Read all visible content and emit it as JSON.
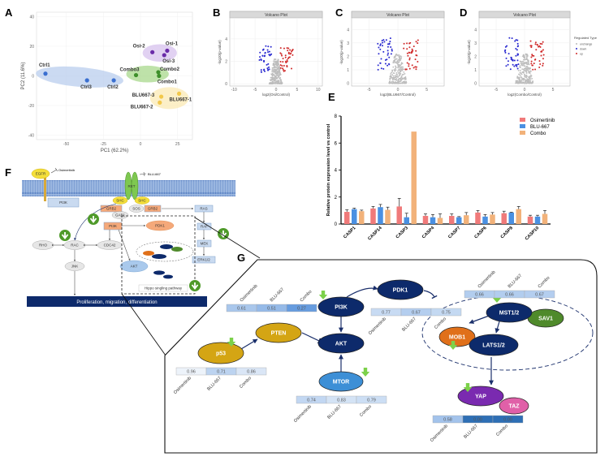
{
  "panel_labels": {
    "A": "A",
    "B": "B",
    "C": "C",
    "D": "D",
    "E": "E",
    "F": "F",
    "G": "G"
  },
  "chart_data": [
    {
      "panel": "A",
      "type": "scatter",
      "xlabel": "PC1 (62.2%)",
      "ylabel": "PC2 (11.6%)",
      "xlim": [
        -70,
        35
      ],
      "ylim": [
        -43,
        43
      ],
      "xticks": [
        "-50",
        "-25",
        "0",
        "25"
      ],
      "xtick_values": [
        -50,
        -25,
        0,
        25
      ],
      "yticks": [
        "40",
        "20",
        "0",
        "-20",
        "-40"
      ],
      "ytick_values": [
        40,
        20,
        0,
        -20,
        -40
      ],
      "groups": [
        {
          "color": "#3a6fd0",
          "ellipse_color": "#b9cdee",
          "points": [
            {
              "label": "Ctrl1",
              "x": -64,
              "y": 1.5
            },
            {
              "label": "Ctrl3",
              "x": -36,
              "y": -3
            },
            {
              "label": "Ctrl2",
              "x": -18,
              "y": -3
            }
          ]
        },
        {
          "color": "#6a2aa8",
          "ellipse_color": "#d7c2ee",
          "points": [
            {
              "label": "Osi-2",
              "x": 8,
              "y": 16
            },
            {
              "label": "Osi-1",
              "x": 18,
              "y": 17
            },
            {
              "label": "Osi-3",
              "x": 16,
              "y": 14
            }
          ]
        },
        {
          "color": "#3d8f2a",
          "ellipse_color": "#a8d88c",
          "points": [
            {
              "label": "Combo3",
              "x": -3,
              "y": 0.5
            },
            {
              "label": "Combo2",
              "x": 12,
              "y": 2.5
            },
            {
              "label": "Combo1",
              "x": 12.5,
              "y": 0
            }
          ]
        },
        {
          "color": "#f2c84b",
          "ellipse_color": "#fbe9b4",
          "points": [
            {
              "label": "BLU667-3",
              "x": 14,
              "y": -14
            },
            {
              "label": "BLU667-1",
              "x": 26,
              "y": -12
            },
            {
              "label": "BLU667-2",
              "x": 13,
              "y": -18
            }
          ]
        }
      ]
    },
    {
      "panel": "B",
      "type": "scatter",
      "title": "Volcano Plot",
      "xlabel": "log2(Osi/Control)",
      "ylabel": "-log10(p-value)",
      "xlim": [
        -11,
        11
      ],
      "ylim": [
        -0.2,
        5.8
      ],
      "xticks": [
        -10,
        -5,
        0,
        5,
        10
      ],
      "yticks": [
        0,
        2,
        4
      ]
    },
    {
      "panel": "C",
      "type": "scatter",
      "title": "Volcano Plot",
      "xlabel": "log2(BLU667/Control)",
      "ylabel": "-log10(p-value)",
      "xlim": [
        -8,
        8
      ],
      "ylim": [
        -0.2,
        4.8
      ],
      "xticks": [
        -5,
        0,
        5
      ],
      "yticks": [
        0,
        1,
        2,
        3,
        4
      ]
    },
    {
      "panel": "D",
      "type": "scatter",
      "title": "Volcano Plot",
      "xlabel": "log2(Combo/Control)",
      "ylabel": "-log10(p-value)",
      "xlim": [
        -8,
        8
      ],
      "ylim": [
        -0.2,
        4.8
      ],
      "xticks": [
        -5,
        0,
        5
      ],
      "yticks": [
        0,
        1,
        2,
        3,
        4
      ],
      "legend": {
        "title": "Regulated Type",
        "entries": [
          "unchange",
          "down",
          "up"
        ],
        "colors": [
          "#bbbbbb",
          "#2a2ad0",
          "#d02a2a"
        ],
        "placement": "right"
      }
    },
    {
      "panel": "E",
      "type": "bar",
      "ylabel": "Relative protein expression level vs control",
      "ylim": [
        0,
        8
      ],
      "yticks": [
        0,
        2,
        4,
        6,
        8
      ],
      "categories": [
        "CASP1",
        "CASP14",
        "CASP3",
        "CASP4",
        "CASP7",
        "CASP6",
        "CASP8",
        "CASP10"
      ],
      "legend_placement": "top-right",
      "series": [
        {
          "name": "Osimertinib",
          "color": "#f07a7a",
          "values": [
            0.9,
            1.15,
            1.3,
            0.6,
            0.6,
            0.85,
            0.8,
            0.55
          ],
          "errors": [
            0.15,
            0.15,
            0.6,
            0.15,
            0.15,
            0.15,
            0.15,
            0.1
          ]
        },
        {
          "name": "BLU-667",
          "color": "#4a90e2",
          "values": [
            1.1,
            1.25,
            0.5,
            0.5,
            0.5,
            0.55,
            0.85,
            0.55
          ],
          "errors": [
            0.08,
            0.2,
            0.3,
            0.2,
            0.05,
            0.15,
            0.03,
            0.1
          ]
        },
        {
          "name": "Combo",
          "color": "#f2b27a",
          "values": [
            0.95,
            1.05,
            6.85,
            0.45,
            0.65,
            0.7,
            1.1,
            0.75
          ],
          "errors": [
            0.08,
            0.2,
            0,
            0.3,
            0.2,
            0.15,
            0.2,
            0.25
          ]
        }
      ]
    }
  ],
  "panel_f": {
    "egfr": "EGFR",
    "osimertinib": "Osimertinib",
    "ret": "RET",
    "blu667": "BLU-667",
    "pi3k_membrane": "PI3K",
    "shc1": "SHC",
    "shc2": "SHC",
    "grb2_left": "GRB2",
    "sos": "SOS",
    "grb2_right": "GRB2",
    "gab1": "GAB1",
    "pi3k": "PI3K",
    "pdk1": "PDK1",
    "rho": "RHO",
    "rac": "RAC",
    "cdc42": "CDC42",
    "jnk": "JNK",
    "akt": "AKT",
    "ras": "RAS",
    "raf": "RAF",
    "mek": "MEK",
    "erk": "ERK1/2",
    "hippo": "Hippo singling pathway",
    "outcome": "Proliferation,  migration,  differentiation"
  },
  "panel_g": {
    "treatments": [
      "Osimertinib",
      "BLU-667",
      "Combo"
    ],
    "nodes": {
      "pdk1": "PDK1",
      "pi3k": "PI3K",
      "akt": "AKT",
      "mtor": "MTOR",
      "pten": "PTEN",
      "p53": "p53",
      "mst": "MST1/2",
      "sav1": "SAV1",
      "mob1": "MOB1",
      "lats": "LATS1/2",
      "yap": "YAP",
      "taz": "TAZ"
    },
    "value_boxes": [
      {
        "target": "PI3K",
        "values": [
          "0.61",
          "0.51",
          "0.27"
        ],
        "levels": [
          0.61,
          0.51,
          0.27
        ]
      },
      {
        "target": "PDK1",
        "values": [
          "0.77",
          "0.67",
          "0.75"
        ],
        "levels": [
          0.77,
          0.67,
          0.75
        ]
      },
      {
        "target": "MST1/2",
        "values": [
          "0.66",
          "0.66",
          "0.67"
        ],
        "levels": [
          0.66,
          0.66,
          0.67
        ]
      },
      {
        "target": "p53",
        "values": [
          "0.96",
          "0.71",
          "0.86"
        ],
        "levels": [
          0.96,
          0.71,
          0.86
        ]
      },
      {
        "target": "MTOR",
        "values": [
          "0.74",
          "0.83",
          "0.79"
        ],
        "levels": [
          0.74,
          0.83,
          0.79
        ]
      },
      {
        "target": "YAP",
        "values": [
          "0.58",
          "0.00",
          "0.00"
        ],
        "levels": [
          0.58,
          0.0,
          0.0
        ]
      }
    ],
    "colors": {
      "node_dark": "#0d2a6b",
      "gold": "#d4a514",
      "mtor": "#3d8fd6",
      "green": "#4f8a2b",
      "orange": "#e0701a",
      "purple": "#7a2ab0",
      "pink": "#e060a8",
      "down_arrow": "#7cd14a"
    }
  }
}
